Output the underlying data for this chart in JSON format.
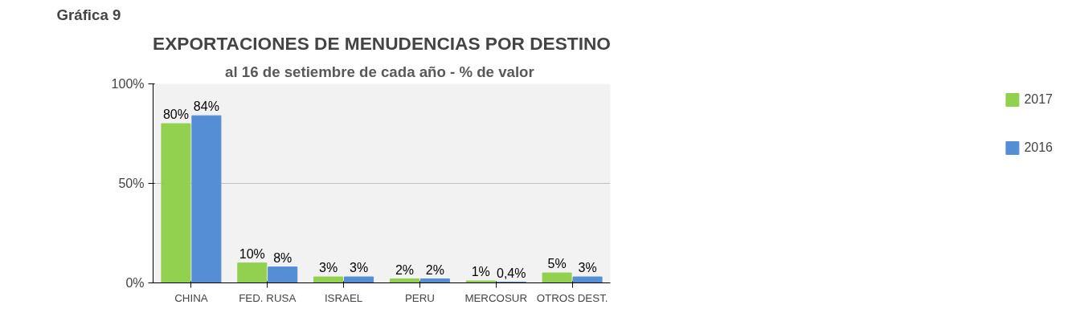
{
  "chart_data": {
    "type": "bar",
    "title": "EXPORTACIONES DE MENUDENCIAS POR DESTINO",
    "subtitle": "al 16 de setiembre de cada año -  % de valor",
    "annotations": [
      "Gráfica 9"
    ],
    "categories": [
      "CHINA",
      "FED. RUSA",
      "ISRAEL",
      "PERU",
      "MERCOSUR",
      "OTROS DEST."
    ],
    "series": [
      {
        "name": "2017",
        "color": "#92d050",
        "values": [
          80,
          10,
          3,
          2,
          1,
          5
        ],
        "value_labels": [
          "80%",
          "10%",
          "3%",
          "2%",
          "1%",
          "5%"
        ]
      },
      {
        "name": "2016",
        "color": "#558ed5",
        "values": [
          84,
          8,
          3,
          2,
          0.4,
          3
        ],
        "value_labels": [
          "84%",
          "8%",
          "3%",
          "2%",
          "0,4%",
          "3%"
        ]
      }
    ],
    "ylim": [
      0,
      100
    ],
    "yticks": [
      {
        "value": 0,
        "label": "0%"
      },
      {
        "value": 50,
        "label": "50%"
      },
      {
        "value": 100,
        "label": "100%"
      }
    ],
    "grid": "y",
    "legend": "right"
  }
}
